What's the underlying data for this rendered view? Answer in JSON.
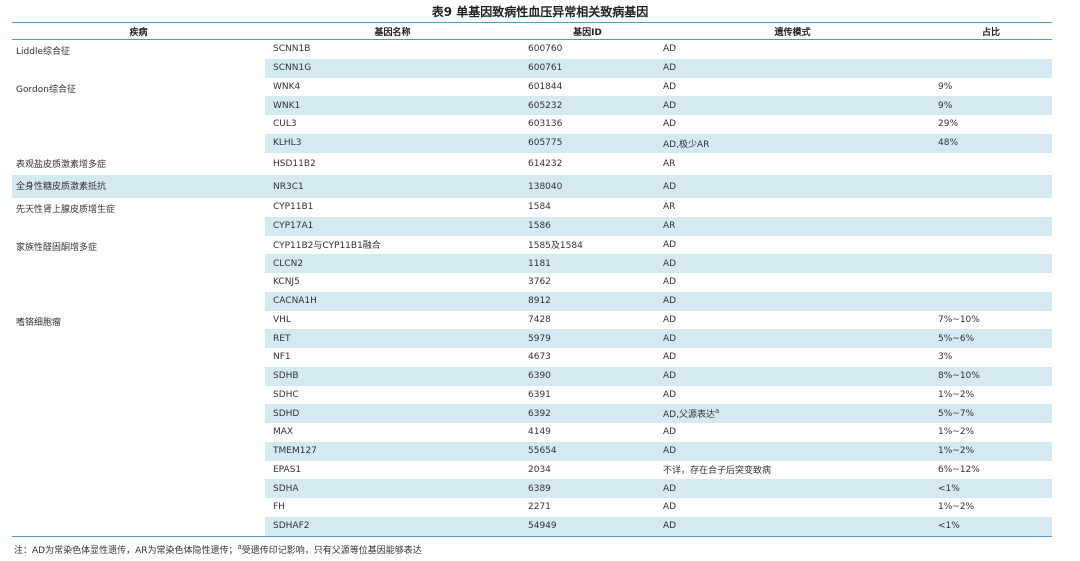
{
  "title": "表9 单基因致病性血压异常相关致病基因",
  "table": {
    "header": [
      "疾病",
      "基因名称",
      "基因ID",
      "遗传模式",
      "占比"
    ],
    "groups": [
      {
        "disease": "Liddle综合征",
        "genes": [
          {
            "gene": "SCNN1B",
            "id": "600760",
            "mode": "AD"
          },
          {
            "gene": "SCNN1G",
            "id": "600761",
            "mode": "AD"
          }
        ]
      },
      {
        "disease": "Gordon综合征",
        "genes": [
          {
            "gene": "WNK4",
            "id": "601844",
            "mode": "AD",
            "ratio": "9%"
          },
          {
            "gene": "WNK1",
            "id": "605232",
            "mode": "AD",
            "ratio": "9%"
          },
          {
            "gene": "CUL3",
            "id": "603136",
            "mode": "AD",
            "ratio": "29%"
          },
          {
            "gene": "KLHL3",
            "id": "605775",
            "mode": "AD,极少AR",
            "ratio": "48%"
          }
        ]
      },
      {
        "disease": "表观盐皮质激素增多症",
        "genes": [
          {
            "gene": "HSD11B2",
            "id": "614232",
            "mode": "AR"
          }
        ]
      },
      {
        "disease": "全身性糖皮质激素抵抗",
        "genes": [
          {
            "gene": "NR3C1",
            "id": "138040",
            "mode": "AD"
          }
        ]
      },
      {
        "disease": "先天性肾上腺皮质增生症",
        "genes": [
          {
            "gene": "CYP11B1",
            "id": "1584",
            "mode": "AR"
          },
          {
            "gene": "CYP17A1",
            "id": "1586",
            "mode": "AR"
          }
        ]
      },
      {
        "disease": "家族性醛固酮增多症",
        "genes": [
          {
            "gene": "CYP11B2与CYP11B1融合",
            "id": "1585及1584",
            "mode": "AD"
          },
          {
            "gene": "CLCN2",
            "id": "1181",
            "mode": "AD"
          },
          {
            "gene": "KCNJ5",
            "id": "3762",
            "mode": "AD"
          },
          {
            "gene": "CACNA1H",
            "id": "8912",
            "mode": "AD"
          }
        ]
      },
      {
        "disease": "嗜铬细胞瘤",
        "genes": [
          {
            "gene": "VHL",
            "id": "7428",
            "mode": "AD",
            "ratio": "7%~10%"
          },
          {
            "gene": "RET",
            "id": "5979",
            "mode": "AD",
            "ratio": "5%~6%"
          },
          {
            "gene": "NF1",
            "id": "4673",
            "mode": "AD",
            "ratio": "3%"
          },
          {
            "gene": "SDHB",
            "id": "6390",
            "mode": "AD",
            "ratio": "8%~10%"
          },
          {
            "gene": "SDHC",
            "id": "6391",
            "mode": "AD",
            "ratio": "1%~2%"
          },
          {
            "gene": "SDHD",
            "id": "6392",
            "mode": "AD,父源表达",
            "mode_sup": "a",
            "ratio": "5%~7%"
          },
          {
            "gene": "MAX",
            "id": "4149",
            "mode": "AD",
            "ratio": "1%~2%"
          },
          {
            "gene": "TMEM127",
            "id": "55654",
            "mode": "AD",
            "ratio": "1%~2%"
          },
          {
            "gene": "EPAS1",
            "id": "2034",
            "mode": "不详，存在合子后突变致病",
            "ratio": "6%~12%"
          },
          {
            "gene": "SDHA",
            "id": "6389",
            "mode": "AD",
            "ratio": "<1%"
          },
          {
            "gene": "FH",
            "id": "2271",
            "mode": "AD",
            "ratio": "1%~2%"
          },
          {
            "gene": "SDHAF2",
            "id": "54949",
            "mode": "AD",
            "ratio": "<1%"
          }
        ]
      }
    ]
  },
  "note": {
    "before": "注：AD为常染色体显性遗传，AR为常染色体隐性遗传；",
    "sup": "a",
    "after": "受遗传印记影响，只有父源等位基因能够表达"
  }
}
